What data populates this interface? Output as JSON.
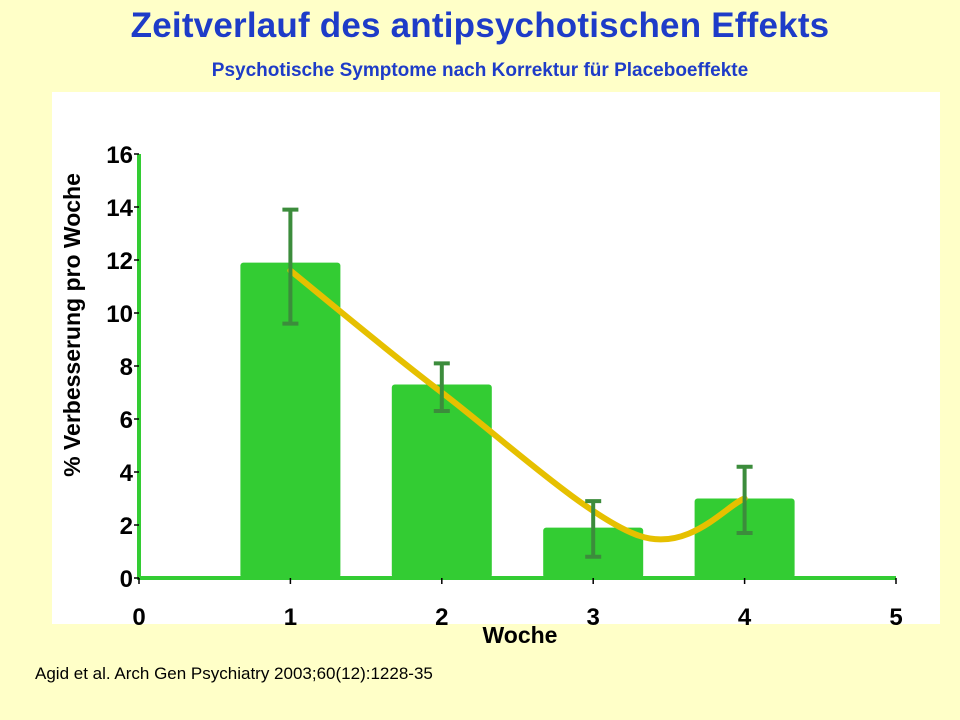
{
  "title": "Zeitverlauf des antipsychotischen Effekts",
  "subtitle": "Psychotische Symptome nach Korrektur für Placeboeffekte",
  "citation": "Agid et al. Arch Gen Psychiatry 2003;60(12):1228-35",
  "colors": {
    "background": "#ffffc8",
    "plot_background": "#ffffff",
    "title": "#1e3cc8",
    "bar": "#33cc33",
    "axis": "#33cc33",
    "error_bar": "#3c8c3c",
    "trend_line": "#e6c000"
  },
  "chart_data": {
    "type": "bar",
    "xlabel": "Woche",
    "ylabel": "% Verbesserung pro Woche",
    "xlim": [
      0,
      5
    ],
    "ylim": [
      0,
      16
    ],
    "x_ticks": [
      0,
      1,
      2,
      3,
      4,
      5
    ],
    "y_ticks": [
      0,
      2,
      4,
      6,
      8,
      10,
      12,
      14,
      16
    ],
    "grid": false,
    "categories": [
      1,
      2,
      3,
      4
    ],
    "values": [
      11.9,
      7.3,
      1.9,
      3.0
    ],
    "error_low": [
      9.6,
      6.3,
      0.8,
      1.7
    ],
    "error_high": [
      13.9,
      8.1,
      2.9,
      4.2
    ],
    "trend_line": {
      "x": [
        1,
        2,
        3.3,
        4
      ],
      "y": [
        11.6,
        7.0,
        1.6,
        3.0
      ]
    }
  }
}
